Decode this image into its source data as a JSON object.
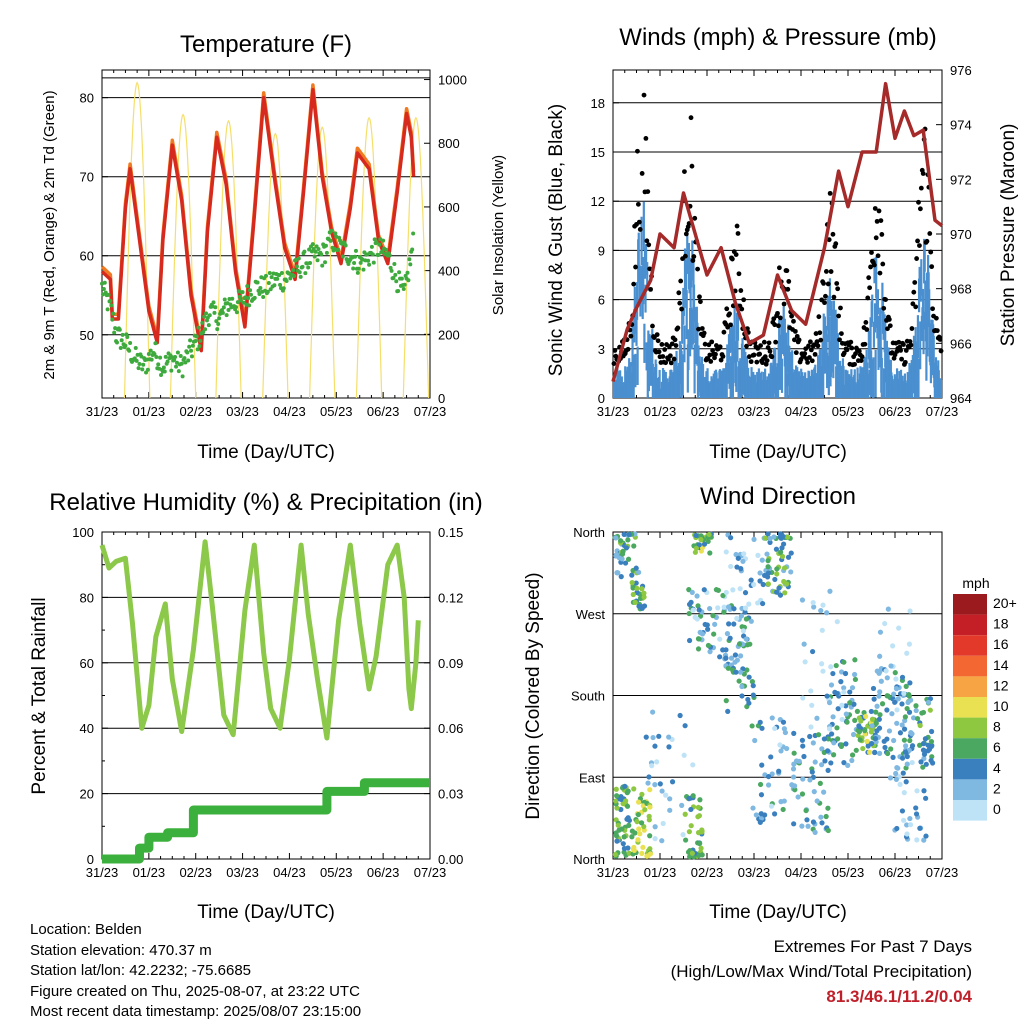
{
  "x_tick_labels": [
    "31/23",
    "01/23",
    "02/23",
    "03/23",
    "04/23",
    "05/23",
    "06/23",
    "07/23"
  ],
  "x_axis_label": "Time (Day/UTC)",
  "colors": {
    "t2m": "#d62a1e",
    "t9m": "#f07a22",
    "td": "#3eaa3e",
    "solar": "#f5df6a",
    "wind": "#4a8fcf",
    "gust": "#000000",
    "pressure": "#a52a2a",
    "rh": "#8cc84a",
    "precip": "#3cb03c"
  },
  "chart_data": [
    {
      "type": "line",
      "title": "Temperature (F)",
      "xlabel": "Time (Day/UTC)",
      "ylabel": "2m & 9m T (Red, Orange) & 2m Td (Green)",
      "y2label": "Solar Insolation (Yellow)",
      "ylim": [
        42,
        83.5
      ],
      "yticks": [
        50,
        60,
        70,
        80
      ],
      "y2lim": [
        0,
        1030
      ],
      "y2ticks": [
        0,
        200,
        400,
        600,
        800,
        1000
      ],
      "x_days": [
        0,
        7
      ],
      "series": [
        {
          "key": "t2m",
          "points": [
            [
              0,
              58
            ],
            [
              0.18,
              57
            ],
            [
              0.22,
              52
            ],
            [
              0.35,
              52
            ],
            [
              0.5,
              66
            ],
            [
              0.6,
              71
            ],
            [
              0.8,
              62
            ],
            [
              1.0,
              53
            ],
            [
              1.18,
              49
            ],
            [
              1.3,
              62
            ],
            [
              1.5,
              74
            ],
            [
              1.7,
              67
            ],
            [
              1.9,
              55
            ],
            [
              2.12,
              48
            ],
            [
              2.25,
              63
            ],
            [
              2.45,
              75
            ],
            [
              2.65,
              69
            ],
            [
              2.85,
              58
            ],
            [
              3.05,
              51
            ],
            [
              3.25,
              65
            ],
            [
              3.45,
              80
            ],
            [
              3.7,
              69
            ],
            [
              3.9,
              61
            ],
            [
              4.12,
              57
            ],
            [
              4.3,
              68
            ],
            [
              4.5,
              81
            ],
            [
              4.7,
              70
            ],
            [
              4.9,
              63
            ],
            [
              5.1,
              59
            ],
            [
              5.3,
              66
            ],
            [
              5.45,
              73
            ],
            [
              5.7,
              71
            ],
            [
              5.9,
              62
            ],
            [
              6.1,
              59
            ],
            [
              6.3,
              68
            ],
            [
              6.5,
              78
            ],
            [
              6.6,
              75
            ],
            [
              6.65,
              70
            ]
          ]
        },
        {
          "key": "td",
          "points": [
            [
              0,
              56
            ],
            [
              0.2,
              53
            ],
            [
              0.3,
              50
            ],
            [
              0.5,
              49
            ],
            [
              0.7,
              47
            ],
            [
              0.9,
              46
            ],
            [
              1.1,
              48
            ],
            [
              1.3,
              46
            ],
            [
              1.5,
              47
            ],
            [
              1.7,
              46
            ],
            [
              1.9,
              48
            ],
            [
              2.1,
              50
            ],
            [
              2.3,
              53
            ],
            [
              2.5,
              52
            ],
            [
              2.7,
              54
            ],
            [
              2.9,
              54
            ],
            [
              3.1,
              55
            ],
            [
              3.3,
              56
            ],
            [
              3.5,
              56
            ],
            [
              3.7,
              57
            ],
            [
              3.9,
              57
            ],
            [
              4.1,
              58
            ],
            [
              4.3,
              59
            ],
            [
              4.5,
              60
            ],
            [
              4.7,
              60
            ],
            [
              4.9,
              62
            ],
            [
              5.1,
              61
            ],
            [
              5.3,
              60
            ],
            [
              5.5,
              59
            ],
            [
              5.7,
              60
            ],
            [
              5.9,
              61
            ],
            [
              6.1,
              60
            ],
            [
              6.3,
              57
            ],
            [
              6.45,
              55
            ],
            [
              6.6,
              60
            ],
            [
              6.65,
              62
            ]
          ]
        },
        {
          "key": "solar",
          "peaks": [
            [
              0.75,
              990
            ],
            [
              1.73,
              890
            ],
            [
              2.7,
              870
            ],
            [
              3.7,
              830
            ],
            [
              4.7,
              850
            ],
            [
              5.7,
              880
            ],
            [
              6.7,
              880
            ]
          ]
        }
      ]
    },
    {
      "type": "scatter",
      "title": "Winds (mph) & Pressure (mb)",
      "xlabel": "Time (Day/UTC)",
      "ylabel": "Sonic Wind & Gust (Blue, Black)",
      "y2label": "Station Pressure (Maroon)",
      "ylim": [
        0,
        20
      ],
      "yticks": [
        0,
        3,
        6,
        9,
        12,
        15,
        18
      ],
      "y2lim": [
        964,
        976
      ],
      "y2ticks": [
        964,
        966,
        968,
        970,
        972,
        974,
        976
      ],
      "x_days": [
        0,
        7
      ],
      "pressure": [
        [
          0,
          964.6
        ],
        [
          0.3,
          966.5
        ],
        [
          0.5,
          967.3
        ],
        [
          0.8,
          968.3
        ],
        [
          1.0,
          970.0
        ],
        [
          1.3,
          969.5
        ],
        [
          1.5,
          971.5
        ],
        [
          1.7,
          970.3
        ],
        [
          2.0,
          968.5
        ],
        [
          2.3,
          969.5
        ],
        [
          2.6,
          967.5
        ],
        [
          2.9,
          966.0
        ],
        [
          3.2,
          966.3
        ],
        [
          3.5,
          968.5
        ],
        [
          3.8,
          967.2
        ],
        [
          4.1,
          966.7
        ],
        [
          4.5,
          969.5
        ],
        [
          4.8,
          972.3
        ],
        [
          5.0,
          971.0
        ],
        [
          5.3,
          973.0
        ],
        [
          5.6,
          973.0
        ],
        [
          5.8,
          975.5
        ],
        [
          6.0,
          973.5
        ],
        [
          6.2,
          974.5
        ],
        [
          6.4,
          973.6
        ],
        [
          6.6,
          973.8
        ],
        [
          6.85,
          970.5
        ],
        [
          7.0,
          970.3
        ]
      ]
    },
    {
      "type": "line",
      "title": "Relative Humidity (%) & Precipitation (in)",
      "xlabel": "Time (Day/UTC)",
      "ylabel": "Percent & Total Rainfall",
      "ylim": [
        0,
        100
      ],
      "yticks": [
        0,
        20,
        40,
        60,
        80,
        100
      ],
      "y2lim": [
        0,
        0.15
      ],
      "y2ticks": [
        "0.00",
        "0.03",
        "0.06",
        "0.09",
        "0.12",
        "0.15"
      ],
      "x_days": [
        0,
        7
      ],
      "rh": [
        [
          0,
          96
        ],
        [
          0.15,
          89
        ],
        [
          0.3,
          91
        ],
        [
          0.5,
          92
        ],
        [
          0.65,
          72
        ],
        [
          0.85,
          40
        ],
        [
          1.0,
          47
        ],
        [
          1.15,
          68
        ],
        [
          1.35,
          78
        ],
        [
          1.5,
          55
        ],
        [
          1.7,
          39
        ],
        [
          1.95,
          64
        ],
        [
          2.2,
          97
        ],
        [
          2.35,
          78
        ],
        [
          2.6,
          44
        ],
        [
          2.8,
          38
        ],
        [
          3.05,
          76
        ],
        [
          3.25,
          96
        ],
        [
          3.45,
          63
        ],
        [
          3.6,
          46
        ],
        [
          3.8,
          40
        ],
        [
          4.0,
          61
        ],
        [
          4.25,
          96
        ],
        [
          4.4,
          75
        ],
        [
          4.6,
          55
        ],
        [
          4.8,
          37
        ],
        [
          5.05,
          73
        ],
        [
          5.3,
          96
        ],
        [
          5.5,
          72
        ],
        [
          5.7,
          52
        ],
        [
          5.85,
          62
        ],
        [
          6.1,
          90
        ],
        [
          6.3,
          96
        ],
        [
          6.45,
          80
        ],
        [
          6.55,
          52
        ],
        [
          6.6,
          46
        ],
        [
          6.7,
          60
        ],
        [
          6.75,
          73
        ]
      ],
      "precip": [
        [
          0,
          0
        ],
        [
          0.8,
          0
        ],
        [
          0.8,
          0.005
        ],
        [
          1.0,
          0.005
        ],
        [
          1.0,
          0.01
        ],
        [
          1.4,
          0.01
        ],
        [
          1.4,
          0.012
        ],
        [
          1.95,
          0.012
        ],
        [
          1.95,
          0.0225
        ],
        [
          4.8,
          0.0225
        ],
        [
          4.8,
          0.031
        ],
        [
          5.6,
          0.031
        ],
        [
          5.6,
          0.035
        ],
        [
          7.0,
          0.035
        ]
      ]
    },
    {
      "type": "scatter",
      "title": "Wind Direction",
      "xlabel": "Time (Day/UTC)",
      "ylabel": "Direction (Colored By Speed)",
      "y_categories": [
        "North",
        "East",
        "South",
        "West",
        "North"
      ],
      "ylim": [
        0,
        360
      ],
      "x_days": [
        0,
        7
      ],
      "legend_title": "mph",
      "legend_labels": [
        "20+",
        "18",
        "16",
        "14",
        "12",
        "10",
        "8",
        "6",
        "4",
        "2",
        "0"
      ],
      "legend_colors": [
        "#9a1a1d",
        "#c41f26",
        "#e2392b",
        "#f26732",
        "#f7a544",
        "#e9e152",
        "#8ec740",
        "#4aa860",
        "#3a7fbe",
        "#7fb8e1",
        "#bfe3f6"
      ]
    }
  ],
  "info": {
    "location": "Location: Belden",
    "elevation": "Station elevation: 470.37 m",
    "latlon": "Station lat/lon: 42.2232; -75.6685",
    "created": "Figure created on Thu, 2025-08-07, at 23:22 UTC",
    "recent": "Most recent data timestamp: 2025/08/07 23:15:00"
  },
  "extremes": {
    "title": "Extremes For Past 7 Days",
    "subtitle": "(High/Low/Max Wind/Total Precipitation)",
    "values": "81.3/46.1/11.2/0.04"
  }
}
